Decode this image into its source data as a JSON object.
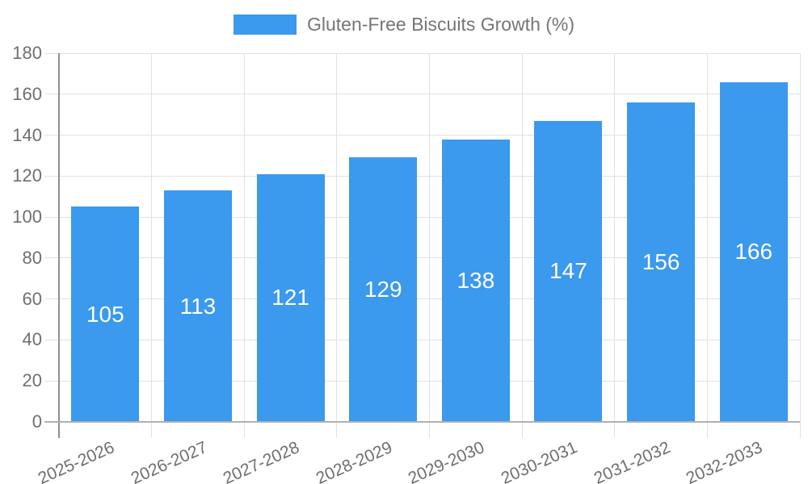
{
  "chart_data": {
    "type": "bar",
    "title": "Gluten-Free Biscuits Growth (%)",
    "legend_position": "top",
    "categories": [
      "2025-2026",
      "2026-2027",
      "2027-2028",
      "2028-2029",
      "2029-2030",
      "2030-2031",
      "2031-2032",
      "2032-2033"
    ],
    "values": [
      105,
      113,
      121,
      129,
      138,
      147,
      156,
      166
    ],
    "bar_labels": [
      "105",
      "113",
      "121",
      "129",
      "138",
      "147",
      "156",
      "166"
    ],
    "xlabel": "",
    "ylabel": "",
    "ylim": [
      0,
      180
    ],
    "y_ticks": [
      0,
      20,
      40,
      60,
      80,
      100,
      120,
      140,
      160,
      180
    ],
    "grid": true,
    "colors": {
      "bar": "#3B99EE",
      "grid": "#e2e2e2",
      "axis": "#8f8f8f",
      "axis_bottom": "#b0b0b0",
      "tick_text": "#6f6f6f",
      "legend_text": "#757575",
      "bar_label": "#ffffff"
    }
  }
}
